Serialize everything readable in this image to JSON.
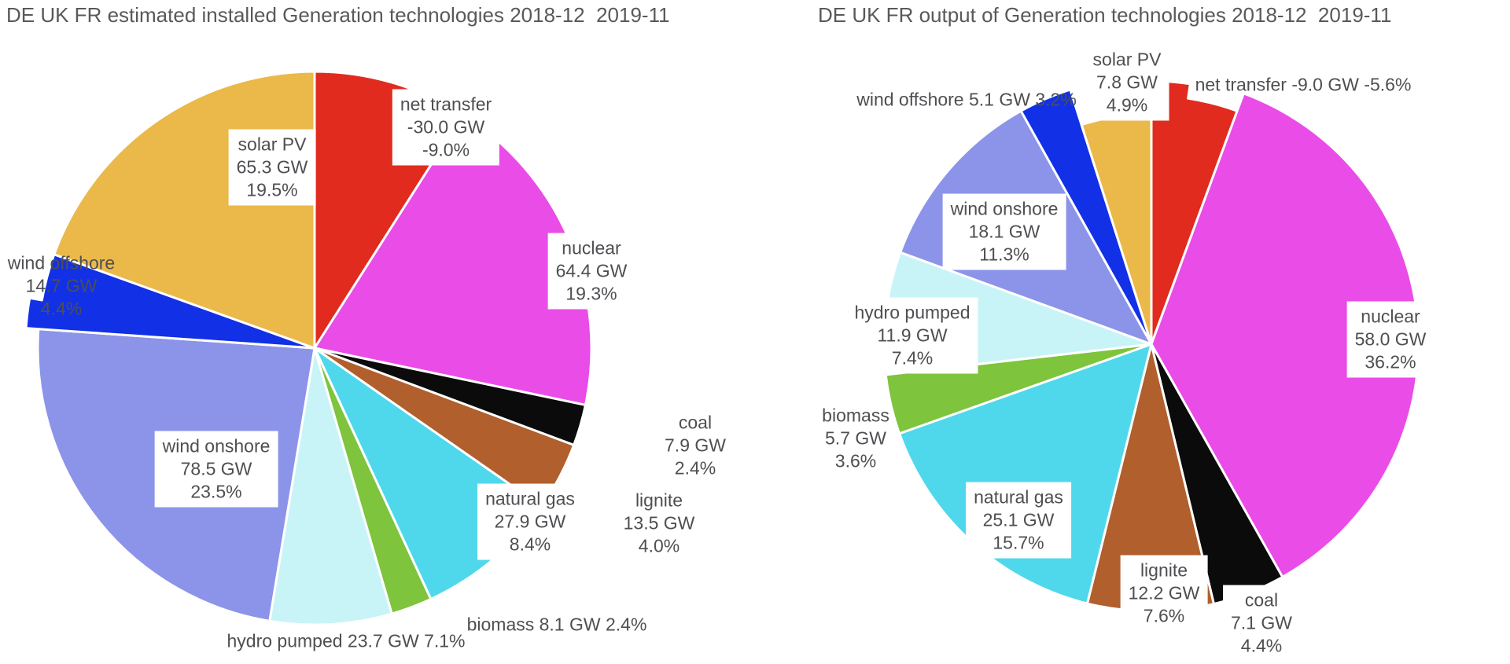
{
  "page": {
    "background_color": "#ffffff",
    "title_color": "#58595b",
    "label_color": "#4e4f52"
  },
  "chart_data": [
    {
      "type": "pie",
      "title": "DE UK FR estimated installed Generation technologies 2018-12  2019-11",
      "unit": "GW",
      "legend_position": "none",
      "slices": [
        {
          "label": "net transfer",
          "value_text": "-30.0 GW",
          "percent_text": "-9.0%",
          "share_pct": 9.0,
          "color": "#e02b1e"
        },
        {
          "label": "nuclear",
          "value_text": "64.4 GW",
          "percent_text": "19.3%",
          "share_pct": 19.3,
          "color": "#ea4ce8"
        },
        {
          "label": "coal",
          "value_text": "7.9 GW",
          "percent_text": "2.4%",
          "share_pct": 2.4,
          "color": "#0b0b0b"
        },
        {
          "label": "lignite",
          "value_text": "13.5 GW",
          "percent_text": "4.0%",
          "share_pct": 4.0,
          "color": "#b05f2d"
        },
        {
          "label": "natural gas",
          "value_text": "27.9 GW",
          "percent_text": "8.4%",
          "share_pct": 8.4,
          "color": "#4fd8ec"
        },
        {
          "label": "biomass",
          "value_text": "8.1 GW",
          "percent_text": "2.4%",
          "share_pct": 2.4,
          "color": "#7ec43c"
        },
        {
          "label": "hydro pumped",
          "value_text": "23.7 GW",
          "percent_text": "7.1%",
          "share_pct": 7.1,
          "color": "#c9f4f7"
        },
        {
          "label": "wind onshore",
          "value_text": "78.5 GW",
          "percent_text": "23.5%",
          "share_pct": 23.5,
          "color": "#8b94e9"
        },
        {
          "label": "wind offshore",
          "value_text": "14.7 GW",
          "percent_text": "4.4%",
          "share_pct": 4.4,
          "color": "#1230e6"
        },
        {
          "label": "solar PV",
          "value_text": "65.3 GW",
          "percent_text": "19.5%",
          "share_pct": 19.5,
          "color": "#ebb84a"
        }
      ]
    },
    {
      "type": "pie",
      "title": "DE UK FR output of Generation technologies 2018-12  2019-11",
      "unit": "GW",
      "legend_position": "none",
      "slices": [
        {
          "label": "net transfer",
          "value_text": "-9.0 GW",
          "percent_text": "-5.6%",
          "share_pct": 5.6,
          "color": "#e02b1e"
        },
        {
          "label": "nuclear",
          "value_text": "58.0 GW",
          "percent_text": "36.2%",
          "share_pct": 36.2,
          "color": "#ea4ce8"
        },
        {
          "label": "coal",
          "value_text": "7.1 GW",
          "percent_text": "4.4%",
          "share_pct": 4.4,
          "color": "#0b0b0b"
        },
        {
          "label": "lignite",
          "value_text": "12.2 GW",
          "percent_text": "7.6%",
          "share_pct": 7.6,
          "color": "#b05f2d"
        },
        {
          "label": "natural gas",
          "value_text": "25.1 GW",
          "percent_text": "15.7%",
          "share_pct": 15.7,
          "color": "#4fd8ec"
        },
        {
          "label": "biomass",
          "value_text": "5.7 GW",
          "percent_text": "3.6%",
          "share_pct": 3.6,
          "color": "#7ec43c"
        },
        {
          "label": "hydro pumped",
          "value_text": "11.9 GW",
          "percent_text": "7.4%",
          "share_pct": 7.4,
          "color": "#c9f4f7"
        },
        {
          "label": "wind onshore",
          "value_text": "18.1 GW",
          "percent_text": "11.3%",
          "share_pct": 11.3,
          "color": "#8b94e9"
        },
        {
          "label": "wind offshore",
          "value_text": "5.1 GW",
          "percent_text": "3.2%",
          "share_pct": 3.2,
          "color": "#1230e6"
        },
        {
          "label": "solar PV",
          "value_text": "7.8 GW",
          "percent_text": "4.9%",
          "share_pct": 4.9,
          "color": "#ebb84a"
        }
      ]
    }
  ]
}
